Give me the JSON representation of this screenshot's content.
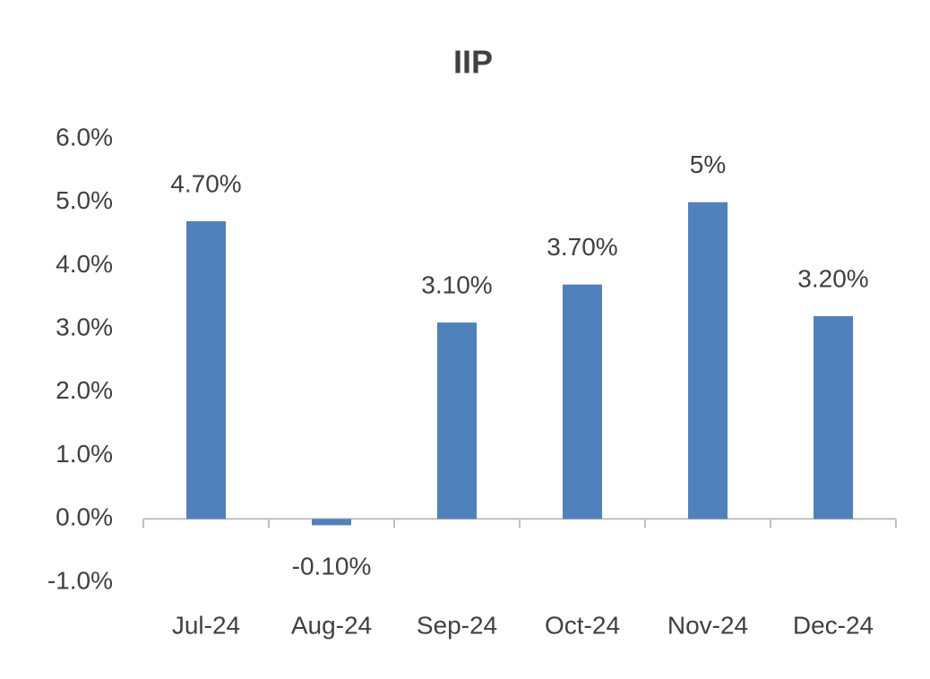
{
  "chart_data": {
    "type": "bar",
    "title": "IIP",
    "categories": [
      "Jul-24",
      "Aug-24",
      "Sep-24",
      "Oct-24",
      "Nov-24",
      "Dec-24"
    ],
    "values": [
      4.7,
      -0.1,
      3.1,
      3.7,
      5,
      3.2
    ],
    "value_labels": [
      "4.70%",
      "-0.10%",
      "3.10%",
      "3.70%",
      "5%",
      "3.20%"
    ],
    "color": "#4f81bd",
    "ylim": [
      -1,
      6
    ],
    "yticks": [
      {
        "value": -1,
        "label": "-1.0%"
      },
      {
        "value": 0,
        "label": "0.0%"
      },
      {
        "value": 1,
        "label": "1.0%"
      },
      {
        "value": 2,
        "label": "2.0%"
      },
      {
        "value": 3,
        "label": "3.0%"
      },
      {
        "value": 4,
        "label": "4.0%"
      },
      {
        "value": 5,
        "label": "5.0%"
      },
      {
        "value": 6,
        "label": "6.0%"
      }
    ],
    "grid": false
  }
}
